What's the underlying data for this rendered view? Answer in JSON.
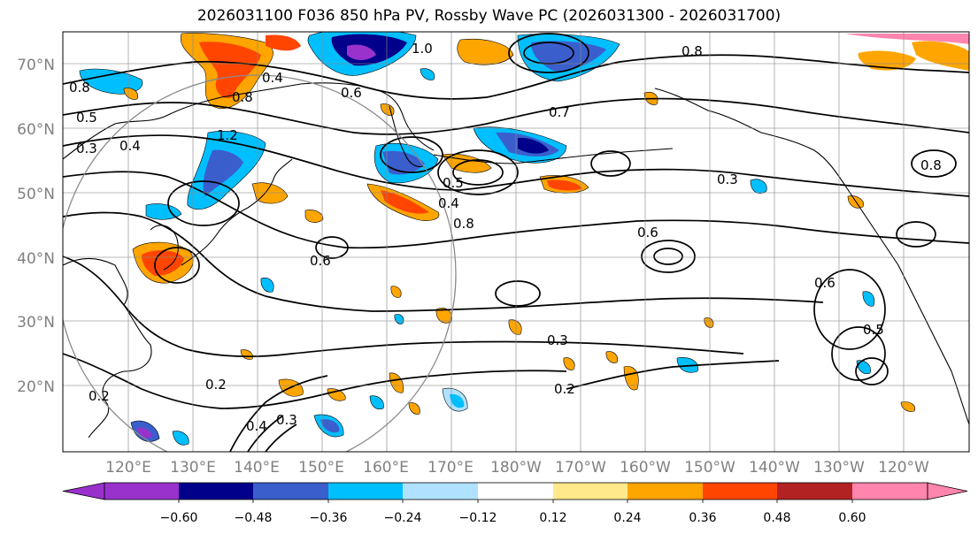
{
  "title": "2026031100 F036 850 hPa PV, Rossby Wave PC (2026031300 - 2026031700)",
  "lat_labels": [
    "70°N",
    "60°N",
    "50°N",
    "40°N",
    "30°N",
    "20°N"
  ],
  "lon_labels": [
    "120°E",
    "130°E",
    "140°E",
    "150°E",
    "160°E",
    "170°E",
    "180°W",
    "170°W",
    "160°W",
    "150°W",
    "140°W",
    "130°W",
    "120°W"
  ],
  "colorbar": {
    "levels": [
      "−0.60",
      "−0.48",
      "−0.36",
      "−0.24",
      "−0.12",
      "0.12",
      "0.24",
      "0.36",
      "0.48",
      "0.60"
    ],
    "colors": [
      "#9932CC",
      "#00008B",
      "#3A5FCD",
      "#00BFFF",
      "#B0E2FF",
      "#FFFFFF",
      "#FFE98A",
      "#FFA500",
      "#FF4500",
      "#B22222",
      "#FF85AE"
    ]
  },
  "contour_labels": [
    "0.8",
    "0.5",
    "0.3",
    "0.4",
    "0.6",
    "1.0",
    "1.2",
    "0.7",
    "0.2",
    "0.8",
    "0.3",
    "0.6",
    "0.2",
    "0.4",
    "0.3",
    "0.6",
    "0.8",
    "0.3",
    "0.2",
    "0.4",
    "0.5",
    "0.8",
    "0.4",
    "0.8",
    "0.6",
    "0.5"
  ]
}
